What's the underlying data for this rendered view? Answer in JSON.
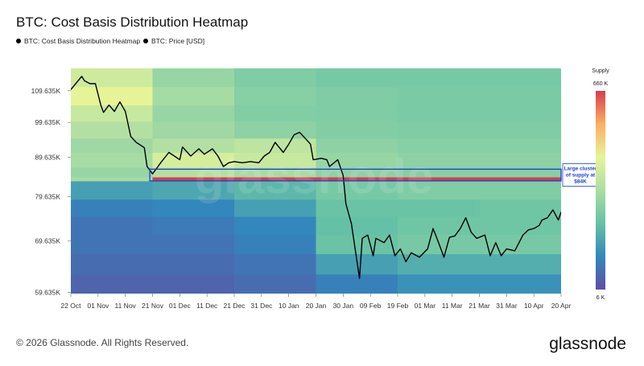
{
  "chart_data": {
    "type": "heatmap",
    "title": "BTC: Cost Basis Distribution Heatmap",
    "watermark": "glassnode",
    "log_y": true,
    "xlim": [
      0,
      180
    ],
    "ylim": [
      59400,
      117300
    ],
    "xticks": [
      {
        "value": 0,
        "label": "22 Oct"
      },
      {
        "value": 10,
        "label": "01 Nov"
      },
      {
        "value": 20,
        "label": "11 Nov"
      },
      {
        "value": 30,
        "label": "21 Nov"
      },
      {
        "value": 40,
        "label": "01 Dec"
      },
      {
        "value": 50,
        "label": "11 Dec"
      },
      {
        "value": 60,
        "label": "21 Dec"
      },
      {
        "value": 70,
        "label": "31 Dec"
      },
      {
        "value": 80,
        "label": "10 Jan"
      },
      {
        "value": 90,
        "label": "20 Jan"
      },
      {
        "value": 100,
        "label": "30 Jan"
      },
      {
        "value": 110,
        "label": "09 Feb"
      },
      {
        "value": 120,
        "label": "19 Feb"
      },
      {
        "value": 130,
        "label": "01 Mar"
      },
      {
        "value": 140,
        "label": "11 Mar"
      },
      {
        "value": 150,
        "label": "21 Mar"
      },
      {
        "value": 160,
        "label": "31 Mar"
      },
      {
        "value": 170,
        "label": "10 Apr"
      },
      {
        "value": 180,
        "label": "20 Apr"
      }
    ],
    "yticks": [
      {
        "value": 109635,
        "label": "109.635K"
      },
      {
        "value": 99635,
        "label": "99.635K"
      },
      {
        "value": 89635,
        "label": "89.635K"
      },
      {
        "value": 79635,
        "label": "79.635K"
      },
      {
        "value": 69635,
        "label": "69.635K"
      },
      {
        "value": 59635,
        "label": "59.635K"
      }
    ],
    "heatmap": {
      "name": "BTC: Cost Basis Distribution Heatmap",
      "legend_color": "#000000",
      "time_bins": [
        0,
        30,
        60,
        90,
        120,
        150,
        180
      ],
      "price_bins": [
        59400,
        63000,
        67000,
        71000,
        75000,
        79000,
        83500,
        84500,
        87000,
        91000,
        95000,
        100000,
        105000,
        111000,
        117300
      ],
      "values": [
        [
          8000,
          8000,
          9000,
          12000,
          15000,
          15000
        ],
        [
          9000,
          9000,
          10000,
          18000,
          22000,
          22000
        ],
        [
          10000,
          10000,
          12000,
          30000,
          35000,
          35000
        ],
        [
          10000,
          11000,
          13000,
          28000,
          32000,
          32000
        ],
        [
          12000,
          13000,
          18000,
          30000,
          30000,
          32000
        ],
        [
          18000,
          20000,
          25000,
          35000,
          38000,
          38000
        ],
        [
          60000,
          660000,
          660000,
          660000,
          660000,
          660000
        ],
        [
          50000,
          70000,
          60000,
          45000,
          42000,
          42000
        ],
        [
          60000,
          110000,
          90000,
          50000,
          45000,
          45000
        ],
        [
          55000,
          70000,
          80000,
          45000,
          42000,
          42000
        ],
        [
          70000,
          55000,
          45000,
          40000,
          38000,
          38000
        ],
        [
          90000,
          50000,
          40000,
          38000,
          36000,
          36000
        ],
        [
          140000,
          60000,
          42000,
          38000,
          36000,
          36000
        ],
        [
          100000,
          50000,
          38000,
          35000,
          35000,
          35000
        ]
      ]
    },
    "colorbar": {
      "label": "Supply",
      "range": [
        6000,
        660000
      ],
      "log": true,
      "colormap": [
        "#5e4fa2",
        "#3288bd",
        "#66c2a5",
        "#abdda4",
        "#e6f598",
        "#fdae61",
        "#d53e4f"
      ],
      "ticks": [
        {
          "value": 660000,
          "label": "660 K"
        },
        {
          "value": 6000,
          "label": "6 K"
        }
      ]
    },
    "series": [
      {
        "name": "BTC: Price [USD]",
        "color": "#000000",
        "x": [
          0,
          4,
          5,
          7,
          9,
          11,
          12,
          14,
          16,
          18,
          20,
          22,
          24,
          27,
          28,
          30,
          32,
          33,
          36,
          38,
          40,
          41,
          44,
          47,
          49,
          52,
          54,
          56,
          58,
          60,
          63,
          66,
          69,
          71,
          73,
          75,
          78,
          80,
          82,
          84,
          86,
          88,
          89,
          92,
          94,
          95,
          98,
          100,
          101,
          103,
          106,
          107,
          109,
          111,
          112,
          115,
          117,
          119,
          121,
          123,
          125,
          128,
          131,
          133,
          135,
          137,
          139,
          141,
          143,
          145,
          147,
          149,
          152,
          154,
          156,
          158,
          160,
          163,
          166,
          168,
          170,
          172,
          173,
          175,
          177,
          179,
          180
        ],
        "values": [
          110000,
          114500,
          113000,
          112000,
          112000,
          105000,
          102700,
          105000,
          103000,
          106000,
          103000,
          95500,
          93800,
          92300,
          87200,
          85300,
          87200,
          88200,
          91000,
          90000,
          89000,
          92500,
          90000,
          92000,
          90500,
          92000,
          90000,
          87200,
          88200,
          88500,
          88200,
          88500,
          88200,
          90000,
          91000,
          93800,
          91000,
          93300,
          96000,
          96700,
          95000,
          93300,
          89000,
          89400,
          89000,
          87200,
          89000,
          84900,
          77900,
          73400,
          62200,
          70200,
          70900,
          66600,
          70200,
          69300,
          70900,
          66600,
          68000,
          65400,
          67200,
          66300,
          68000,
          72300,
          69300,
          66300,
          70400,
          70700,
          72300,
          74700,
          71500,
          70200,
          70900,
          66600,
          69300,
          66600,
          68000,
          67600,
          70900,
          72000,
          72300,
          73000,
          74200,
          74700,
          76500,
          74200,
          76000
        ]
      }
    ],
    "annotation": {
      "lines": [
        "Large cluster",
        "of supply at",
        "$84K"
      ],
      "color": "#1a3fd6",
      "x_start": 29,
      "price_range": [
        83500,
        86500
      ]
    }
  },
  "footer": {
    "copyright": "© 2026 Glassnode. All Rights Reserved.",
    "logo": "glassnode"
  }
}
